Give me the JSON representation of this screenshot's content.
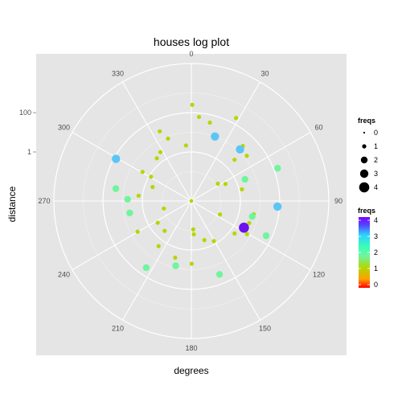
{
  "chart_data": {
    "type": "scatter",
    "coord": "polar",
    "title": "houses log plot",
    "xlabel": "degrees",
    "ylabel": "distance",
    "y_scale": "log10",
    "theta_ticks": [
      "0",
      "30",
      "60",
      "90",
      "120",
      "150",
      "180",
      "210",
      "240",
      "270",
      "300",
      "330"
    ],
    "r_ticks": [
      "1",
      "100"
    ],
    "r_lim": [
      0.0032,
      31620
    ],
    "theta_range_degrees": [
      0,
      360
    ],
    "grid": true,
    "background": "#e5e5e5",
    "legend_position": "right",
    "legend_size": {
      "title": "freqs",
      "labels": [
        "0",
        "1",
        "2",
        "3",
        "4"
      ]
    },
    "legend_color": {
      "title": "freqs",
      "labels": [
        "4",
        "3",
        "2",
        "1",
        "0"
      ],
      "scale": "rainbow red(0) to violet(4)"
    },
    "color_map": {
      "0": "#ff2a00",
      "1": "#b5d600",
      "2": "#6ef59d",
      "3": "#5cc5f5",
      "4": "#6b12ed"
    },
    "points": [
      {
        "theta": 0.5,
        "r": 251,
        "freq": 1
      },
      {
        "theta": 5.2,
        "r": 63,
        "freq": 1
      },
      {
        "theta": 13.3,
        "r": 40,
        "freq": 1
      },
      {
        "theta": 28.3,
        "r": 200,
        "freq": 1
      },
      {
        "theta": 43.1,
        "r": 22,
        "freq": 1
      },
      {
        "theta": 50.8,
        "r": 14,
        "freq": 1
      },
      {
        "theta": 46.3,
        "r": 3.5,
        "freq": 1
      },
      {
        "theta": 56.9,
        "r": 0.13,
        "freq": 1
      },
      {
        "theta": 63.4,
        "r": 0.28,
        "freq": 1
      },
      {
        "theta": 68.0,
        "r": 2.8,
        "freq": 2
      },
      {
        "theta": 77.0,
        "r": 1.4,
        "freq": 1
      },
      {
        "theta": 102.0,
        "r": 5.6,
        "freq": 1
      },
      {
        "theta": 115.2,
        "r": 0.13,
        "freq": 1
      },
      {
        "theta": 110.8,
        "r": 4.5,
        "freq": 1
      },
      {
        "theta": 120.7,
        "r": 6.3,
        "freq": 1
      },
      {
        "theta": 126.9,
        "r": 1.8,
        "freq": 1
      },
      {
        "theta": 150.7,
        "r": 0.7,
        "freq": 1
      },
      {
        "theta": 161.6,
        "r": 0.4,
        "freq": 1
      },
      {
        "theta": 175.8,
        "r": 0.16,
        "freq": 1
      },
      {
        "theta": 179.7,
        "r": 5.0,
        "freq": 1
      },
      {
        "theta": 176.2,
        "r": 0.09,
        "freq": 1
      },
      {
        "theta": 195.9,
        "r": 3.2,
        "freq": 1
      },
      {
        "theta": 216.0,
        "r": 2.2,
        "freq": 1
      },
      {
        "theta": 221.8,
        "r": 0.35,
        "freq": 1
      },
      {
        "theta": 237.1,
        "r": 0.35,
        "freq": 1
      },
      {
        "theta": 240.3,
        "r": 4.5,
        "freq": 1
      },
      {
        "theta": 254.8,
        "r": 0.09,
        "freq": 1
      },
      {
        "theta": 275.7,
        "r": 1.6,
        "freq": 1
      },
      {
        "theta": 289.8,
        "r": 0.4,
        "freq": 1
      },
      {
        "theta": 300.8,
        "r": 2.5,
        "freq": 1
      },
      {
        "theta": 301.0,
        "r": 0.8,
        "freq": 1
      },
      {
        "theta": 321.1,
        "r": 2.0,
        "freq": 1
      },
      {
        "theta": 327.7,
        "r": 2.8,
        "freq": 1
      },
      {
        "theta": 335.6,
        "r": 25,
        "freq": 1
      },
      {
        "theta": 339.5,
        "r": 7.9,
        "freq": 1
      },
      {
        "theta": 354.5,
        "r": 2.2,
        "freq": 1
      },
      {
        "theta": 20.1,
        "r": 10,
        "freq": 3
      },
      {
        "theta": 43.3,
        "r": 13,
        "freq": 3
      },
      {
        "theta": 93.7,
        "r": 79,
        "freq": 3
      },
      {
        "theta": 299.2,
        "r": 79,
        "freq": 3
      },
      {
        "theta": 69.2,
        "r": 158,
        "freq": 2
      },
      {
        "theta": 104.3,
        "r": 5.0,
        "freq": 2
      },
      {
        "theta": 114.9,
        "r": 50,
        "freq": 2
      },
      {
        "theta": 159.0,
        "r": 32,
        "freq": 2
      },
      {
        "theta": 214.1,
        "r": 40,
        "freq": 2
      },
      {
        "theta": 193.6,
        "r": 7.9,
        "freq": 2
      },
      {
        "theta": 259.1,
        "r": 5.0,
        "freq": 2
      },
      {
        "theta": 271.6,
        "r": 5.6,
        "freq": 2
      },
      {
        "theta": 279.3,
        "r": 25,
        "freq": 2
      },
      {
        "theta": 116.9,
        "r": 3.2,
        "freq": 4
      }
    ]
  }
}
